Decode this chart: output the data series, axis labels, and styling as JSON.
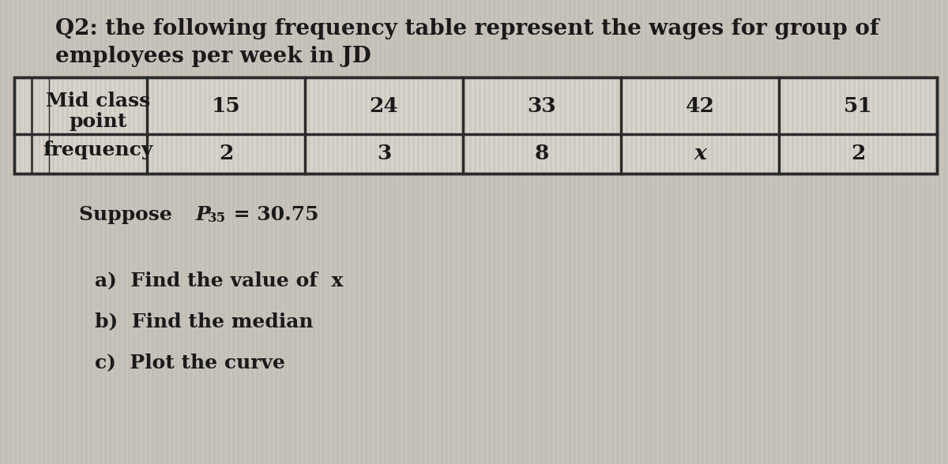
{
  "title_line1": "Q2: the following frequency table represent the wages for group of",
  "title_line2": "employees per week in JD",
  "mid_class_label_1": "Mid class",
  "mid_class_label_2": "point",
  "frequency_label": "frequency",
  "mid_class_values": [
    "15",
    "24",
    "33",
    "42",
    "51"
  ],
  "frequency_values": [
    "2",
    "3",
    "8",
    "x",
    "2"
  ],
  "suppose_main": "Suppose ",
  "suppose_P": "P",
  "suppose_sub": "35",
  "suppose_rest": " = 30.75",
  "part_a": "a)  Find the value of  x",
  "part_b": "b)  Find the median",
  "part_c": "c)  Plot the curve",
  "bg_color": "#c8c4bc",
  "stripe_color": "#b8b4ac",
  "table_bg_light": "#d8d4cc",
  "table_bg_dark": "#c0bcb4",
  "border_color": "#2a2a2a",
  "text_color": "#1a1a1a",
  "title_fontsize": 20,
  "body_fontsize": 18,
  "table_fontsize": 19,
  "label_fontsize": 18
}
